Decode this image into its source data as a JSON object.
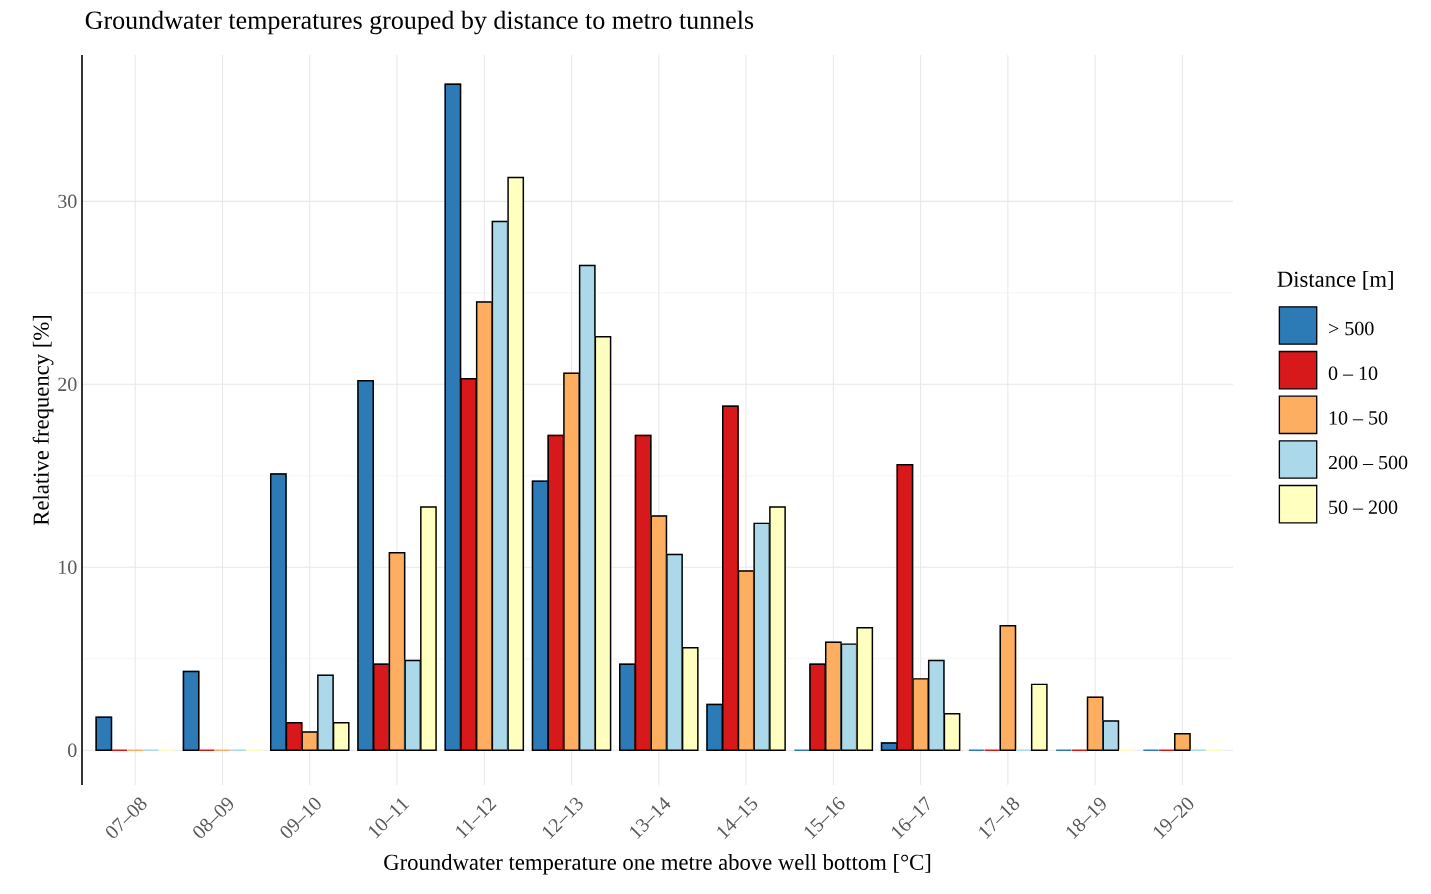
{
  "chart_data": {
    "type": "bar",
    "title": "Groundwater temperatures grouped by distance to metro tunnels",
    "xlabel": "Groundwater temperature one metre above well bottom [°C]",
    "ylabel": "Relative frequency [%]",
    "legend_title": "Distance [m]",
    "categories": [
      "07–08",
      "08–09",
      "09–10",
      "10–11",
      "11–12",
      "12–13",
      "13–14",
      "14–15",
      "15–16",
      "16–17",
      "17–18",
      "18–19",
      "19–20"
    ],
    "series": [
      {
        "name": "> 500",
        "color": "#2c7bb6",
        "values": [
          1.8,
          4.3,
          15.1,
          20.2,
          36.4,
          14.7,
          4.7,
          2.5,
          0,
          0.4,
          0,
          0,
          0
        ]
      },
      {
        "name": "0 – 10",
        "color": "#d7191c",
        "values": [
          0,
          0,
          1.5,
          4.7,
          20.3,
          17.2,
          17.2,
          18.8,
          4.7,
          15.6,
          0,
          0,
          0
        ]
      },
      {
        "name": "10 – 50",
        "color": "#fdae61",
        "values": [
          0,
          0,
          1.0,
          10.8,
          24.5,
          20.6,
          12.8,
          9.8,
          5.9,
          3.9,
          6.8,
          2.9,
          0.9
        ]
      },
      {
        "name": "200 – 500",
        "color": "#abd9e9",
        "values": [
          0,
          0,
          4.1,
          4.9,
          28.9,
          26.5,
          10.7,
          12.4,
          5.8,
          4.9,
          0,
          1.6,
          0
        ]
      },
      {
        "name": "50 – 200",
        "color": "#ffffbf",
        "values": [
          0,
          0,
          1.5,
          13.3,
          31.3,
          22.6,
          5.6,
          13.3,
          6.7,
          2.0,
          3.6,
          0,
          0
        ]
      }
    ],
    "ylim": [
      -1.9,
      38
    ],
    "yticks": [
      0,
      10,
      20,
      30
    ],
    "grid": true,
    "legend": "right"
  }
}
